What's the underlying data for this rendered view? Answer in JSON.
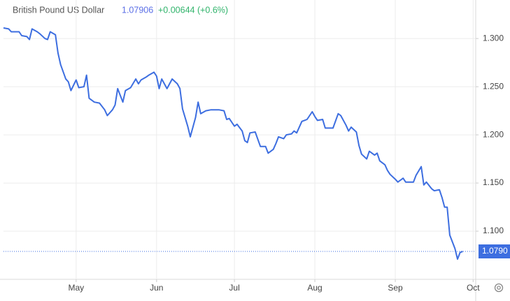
{
  "chart_data": {
    "type": "line",
    "title": "British Pound US Dollar",
    "last_price": 1.07906,
    "change_label": "+0.00644 (+0.6%)",
    "last_price_marker": {
      "value": 1.079,
      "label": "1.0790"
    },
    "x": [
      0,
      2,
      3,
      6,
      7,
      9,
      10,
      11,
      13,
      14,
      16,
      17,
      18,
      20,
      21,
      22,
      24,
      25,
      26,
      28,
      29,
      31,
      32,
      33,
      35,
      37,
      39,
      40,
      42,
      43,
      44,
      46,
      47,
      49,
      51,
      52,
      53,
      55,
      56,
      58,
      59,
      60,
      61,
      63,
      64,
      65,
      67,
      68,
      69,
      71,
      72,
      74,
      75,
      76,
      78,
      80,
      83,
      85,
      86,
      87,
      89,
      90,
      92,
      93,
      94,
      95,
      97,
      99,
      101,
      102,
      104,
      105,
      106,
      108,
      109,
      111,
      112,
      113,
      115,
      116,
      117,
      119,
      120,
      121,
      123,
      124,
      126,
      127,
      129,
      130,
      132,
      133,
      134,
      136,
      137,
      138,
      140,
      141,
      143,
      144,
      145,
      147,
      148,
      149,
      151,
      152,
      154,
      155,
      158,
      159,
      161,
      162,
      163,
      165,
      166,
      168,
      169,
      170,
      171,
      172,
      174,
      175,
      176,
      177
    ],
    "series": [
      {
        "name": "British Pound US Dollar",
        "color": "#3d6ee0",
        "values": [
          1.311,
          1.31,
          1.307,
          1.307,
          1.303,
          1.302,
          1.299,
          1.31,
          1.307,
          1.305,
          1.3,
          1.299,
          1.307,
          1.304,
          1.285,
          1.273,
          1.258,
          1.255,
          1.246,
          1.257,
          1.249,
          1.25,
          1.262,
          1.238,
          1.234,
          1.233,
          1.226,
          1.22,
          1.226,
          1.231,
          1.248,
          1.234,
          1.246,
          1.249,
          1.258,
          1.253,
          1.257,
          1.26,
          1.262,
          1.265,
          1.261,
          1.248,
          1.258,
          1.248,
          1.253,
          1.258,
          1.253,
          1.248,
          1.227,
          1.209,
          1.198,
          1.218,
          1.234,
          1.222,
          1.225,
          1.226,
          1.226,
          1.225,
          1.216,
          1.217,
          1.209,
          1.211,
          1.204,
          1.194,
          1.192,
          1.202,
          1.203,
          1.188,
          1.188,
          1.181,
          1.185,
          1.191,
          1.198,
          1.196,
          1.2,
          1.201,
          1.204,
          1.202,
          1.214,
          1.215,
          1.216,
          1.224,
          1.219,
          1.215,
          1.216,
          1.207,
          1.207,
          1.207,
          1.222,
          1.22,
          1.21,
          1.204,
          1.208,
          1.203,
          1.189,
          1.18,
          1.175,
          1.183,
          1.179,
          1.181,
          1.173,
          1.169,
          1.163,
          1.159,
          1.154,
          1.151,
          1.155,
          1.151,
          1.151,
          1.158,
          1.167,
          1.148,
          1.151,
          1.144,
          1.142,
          1.143,
          1.135,
          1.125,
          1.125,
          1.096,
          1.082,
          1.071,
          1.078,
          1.079
        ]
      }
    ],
    "xlim": [
      0,
      182
    ],
    "xticks": [
      {
        "value": 28,
        "label": "May"
      },
      {
        "value": 59,
        "label": "Jun"
      },
      {
        "value": 89,
        "label": "Jul"
      },
      {
        "value": 120,
        "label": "Aug"
      },
      {
        "value": 151,
        "label": "Sep"
      },
      {
        "value": 181,
        "label": "Oct"
      }
    ],
    "ylim": [
      1.05,
      1.34
    ],
    "yticks": [
      {
        "value": 1.1,
        "label": "1.100"
      },
      {
        "value": 1.15,
        "label": "1.150"
      },
      {
        "value": 1.2,
        "label": "1.200"
      },
      {
        "value": 1.25,
        "label": "1.250"
      },
      {
        "value": 1.3,
        "label": "1.300"
      }
    ],
    "grid": true
  }
}
